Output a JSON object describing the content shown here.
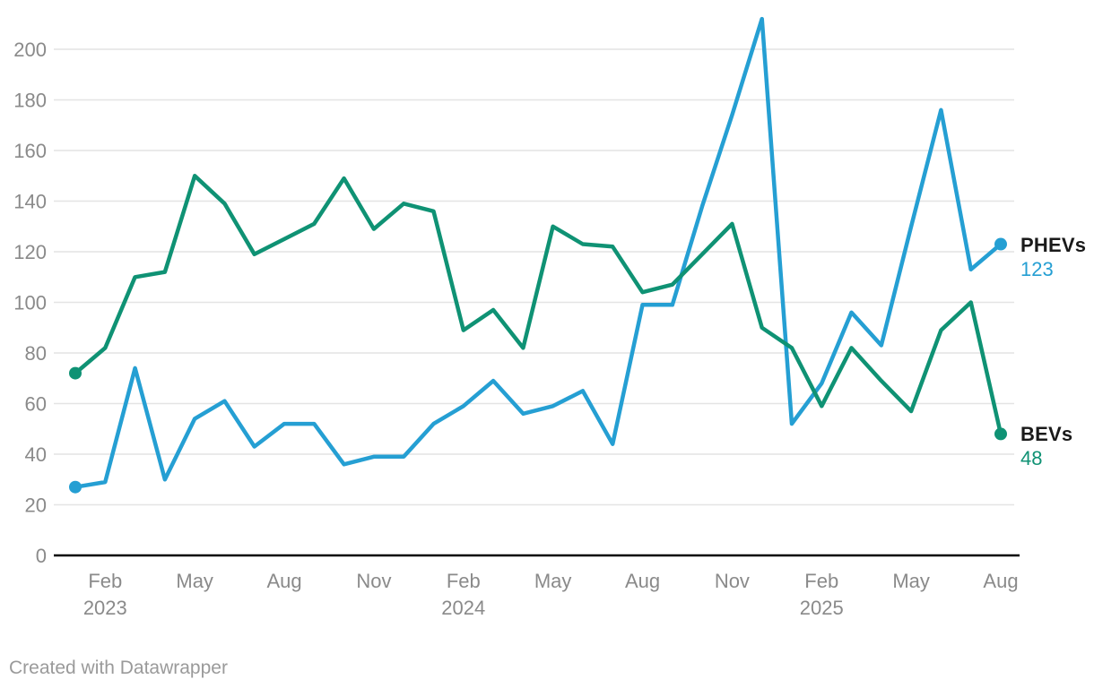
{
  "chart_data": {
    "type": "line",
    "title": "",
    "x_unit": "month",
    "months": [
      "Jan 2023",
      "Feb 2023",
      "Mar 2023",
      "Apr 2023",
      "May 2023",
      "Jun 2023",
      "Jul 2023",
      "Aug 2023",
      "Sep 2023",
      "Oct 2023",
      "Nov 2023",
      "Dec 2023",
      "Jan 2024",
      "Feb 2024",
      "Mar 2024",
      "Apr 2024",
      "May 2024",
      "Jun 2024",
      "Jul 2024",
      "Aug 2024",
      "Sep 2024",
      "Oct 2024",
      "Nov 2024",
      "Dec 2024",
      "Jan 2025",
      "Feb 2025",
      "Mar 2025",
      "Apr 2025",
      "May 2025",
      "Jun 2025",
      "Jul 2025",
      "Aug 2025"
    ],
    "series": [
      {
        "name": "PHEVs",
        "color": "#259fd3",
        "end_label": "123",
        "values": [
          27,
          29,
          74,
          30,
          54,
          61,
          43,
          52,
          52,
          36,
          39,
          39,
          52,
          59,
          69,
          56,
          59,
          65,
          44,
          99,
          99,
          138,
          174,
          212,
          52,
          68,
          96,
          83,
          130,
          176,
          113,
          123
        ]
      },
      {
        "name": "BEVs",
        "color": "#0f9274",
        "end_label": "48",
        "values": [
          72,
          82,
          110,
          112,
          150,
          139,
          119,
          125,
          131,
          149,
          129,
          139,
          136,
          89,
          97,
          82,
          130,
          123,
          122,
          104,
          107,
          119,
          131,
          90,
          82,
          59,
          82,
          69,
          57,
          89,
          100,
          48
        ]
      }
    ],
    "x_ticks": [
      {
        "i": 1,
        "label": "Feb",
        "year": "2023"
      },
      {
        "i": 4,
        "label": "May",
        "year": ""
      },
      {
        "i": 7,
        "label": "Aug",
        "year": ""
      },
      {
        "i": 10,
        "label": "Nov",
        "year": ""
      },
      {
        "i": 13,
        "label": "Feb",
        "year": "2024"
      },
      {
        "i": 16,
        "label": "May",
        "year": ""
      },
      {
        "i": 19,
        "label": "Aug",
        "year": ""
      },
      {
        "i": 22,
        "label": "Nov",
        "year": ""
      },
      {
        "i": 25,
        "label": "Feb",
        "year": "2025"
      },
      {
        "i": 28,
        "label": "May",
        "year": ""
      },
      {
        "i": 31,
        "label": "Aug",
        "year": ""
      }
    ],
    "y_ticks": [
      0,
      20,
      40,
      60,
      80,
      100,
      120,
      140,
      160,
      180,
      200
    ],
    "ylim": [
      0,
      212
    ],
    "grid": true,
    "legend_position": "line-end-labels",
    "colors": {
      "grid": "#e4e4e4",
      "axis": "#000000",
      "tick_text": "#8a8a8a"
    }
  },
  "footer": {
    "credit": "Created with Datawrapper"
  }
}
